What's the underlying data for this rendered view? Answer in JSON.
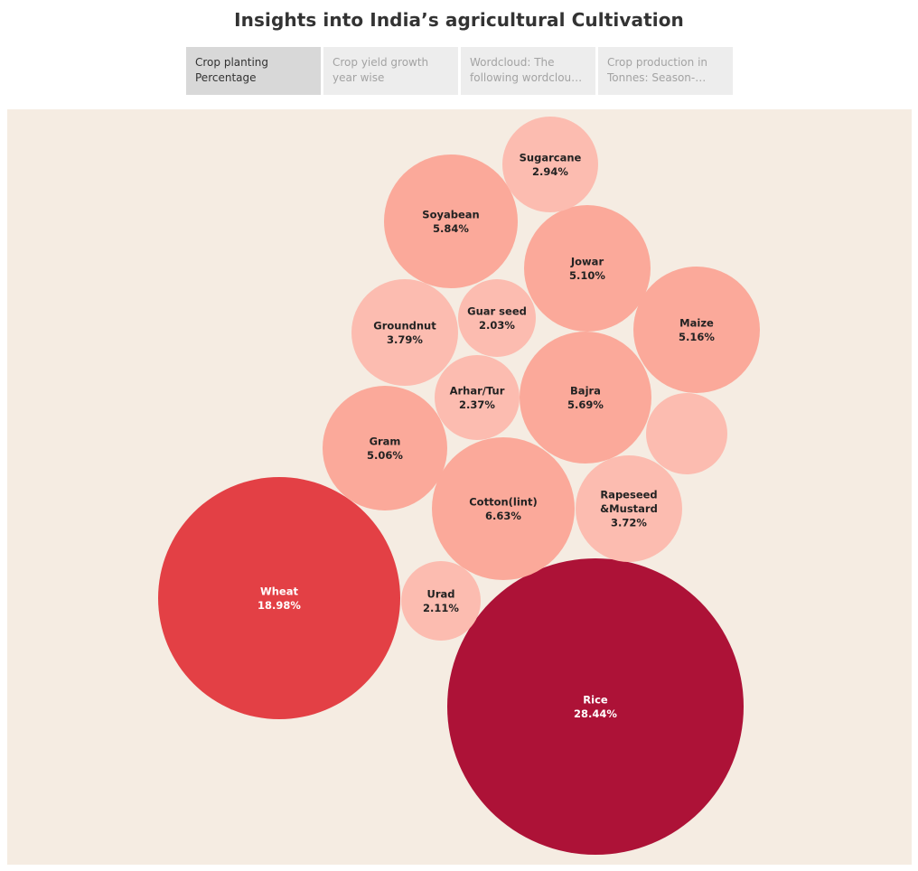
{
  "title": "Insights into India’s agricultural Cultivation",
  "tabs": [
    {
      "label": "Crop planting Percentage",
      "active": true
    },
    {
      "label": "Crop yield growth year wise",
      "active": false
    },
    {
      "label": "Wordcloud: The following wordcloud ..",
      "active": false
    },
    {
      "label": "Crop production in Tonnes: Season-poro..",
      "active": false
    }
  ],
  "chart_data": {
    "type": "bubble",
    "background": "#f5ece2",
    "items": [
      {
        "name": "Rice",
        "value": 28.44,
        "label": "28.44%",
        "color": "#ad1237",
        "text_color": "#ffffff"
      },
      {
        "name": "Wheat",
        "value": 18.98,
        "label": "18.98%",
        "color": "#e34045",
        "text_color": "#ffffff"
      },
      {
        "name": "Cotton(lint)",
        "value": 6.63,
        "label": "6.63%",
        "color": "#fba99a",
        "text_color": "#222222"
      },
      {
        "name": "Soyabean",
        "value": 5.84,
        "label": "5.84%",
        "color": "#fba99a",
        "text_color": "#222222"
      },
      {
        "name": "Bajra",
        "value": 5.69,
        "label": "5.69%",
        "color": "#fba99a",
        "text_color": "#222222"
      },
      {
        "name": "Maize",
        "value": 5.16,
        "label": "5.16%",
        "color": "#fba99a",
        "text_color": "#222222"
      },
      {
        "name": "Jowar",
        "value": 5.1,
        "label": "5.10%",
        "color": "#fba99a",
        "text_color": "#222222"
      },
      {
        "name": "Gram",
        "value": 5.06,
        "label": "5.06%",
        "color": "#fba99a",
        "text_color": "#222222"
      },
      {
        "name": "Groundnut",
        "value": 3.79,
        "label": "3.79%",
        "color": "#fcbcb0",
        "text_color": "#222222"
      },
      {
        "name": "Rapeseed &Mustard",
        "value": 3.72,
        "label": "3.72%",
        "color": "#fcbcb0",
        "text_color": "#222222"
      },
      {
        "name": "Sugarcane",
        "value": 2.94,
        "label": "2.94%",
        "color": "#fcbcb0",
        "text_color": "#222222"
      },
      {
        "name": "Arhar/Tur",
        "value": 2.37,
        "label": "2.37%",
        "color": "#fcbcb0",
        "text_color": "#222222"
      },
      {
        "name": "Urad",
        "value": 2.11,
        "label": "2.11%",
        "color": "#fcbcb0",
        "text_color": "#222222"
      },
      {
        "name": "Guar seed",
        "value": 2.03,
        "label": "2.03%",
        "color": "#fcbcb0",
        "text_color": "#222222"
      },
      {
        "name": "",
        "value": 1.9,
        "label": "",
        "color": "#fcbcb0",
        "text_color": "#222222"
      }
    ]
  }
}
